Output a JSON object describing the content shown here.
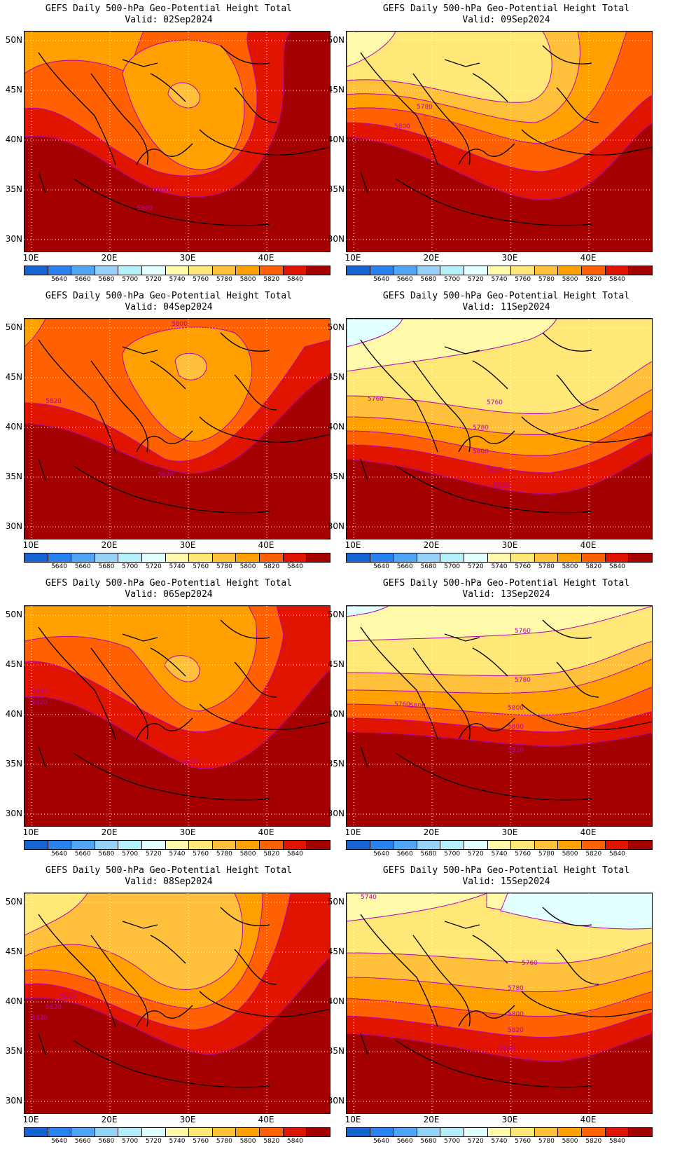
{
  "colorbar": {
    "labels": [
      "5640",
      "5660",
      "5680",
      "5700",
      "5720",
      "5740",
      "5760",
      "5780",
      "5800",
      "5820",
      "5840"
    ],
    "colors": [
      "#1464d2",
      "#2882f0",
      "#50a5f5",
      "#96d2fa",
      "#b4f0fa",
      "#e1ffff",
      "#fffaaa",
      "#ffe878",
      "#ffc03c",
      "#ffa000",
      "#ff6000",
      "#e11400",
      "#a50000"
    ]
  },
  "lat_labels": [
    "50N",
    "45N",
    "40N",
    "35N",
    "30N"
  ],
  "lon_labels": [
    "10E",
    "20E",
    "30E",
    "40E"
  ],
  "panels": [
    {
      "title": "GEFS Daily 500-hPa Geo-Potential Height Total",
      "valid": "Valid: 02Sep2024",
      "contour_labels": [
        "5820",
        "5820"
      ]
    },
    {
      "title": "GEFS Daily 500-hPa Geo-Potential Height Total",
      "valid": "Valid: 09Sep2024",
      "contour_labels": [
        "5780",
        "5800"
      ]
    },
    {
      "title": "GEFS Daily 500-hPa Geo-Potential Height Total",
      "valid": "Valid: 04Sep2024",
      "contour_labels": [
        "5800",
        "5820",
        "5820"
      ]
    },
    {
      "title": "GEFS Daily 500-hPa Geo-Potential Height Total",
      "valid": "Valid: 11Sep2024",
      "contour_labels": [
        "5760",
        "5760",
        "5780",
        "5800",
        "5820",
        "5820"
      ]
    },
    {
      "title": "GEFS Daily 500-hPa Geo-Potential Height Total",
      "valid": "Valid: 06Sep2024",
      "contour_labels": [
        "5820",
        "5820",
        "5820"
      ]
    },
    {
      "title": "GEFS Daily 500-hPa Geo-Potential Height Total",
      "valid": "Valid: 13Sep2024",
      "contour_labels": [
        "5760",
        "5760",
        "5780",
        "5800",
        "5800",
        "5800",
        "5820"
      ]
    },
    {
      "title": "GEFS Daily 500-hPa Geo-Potential Height Total",
      "valid": "Valid: 08Sep2024",
      "contour_labels": [
        "5800",
        "5820",
        "5820"
      ]
    },
    {
      "title": "GEFS Daily 500-hPa Geo-Potential Height Total",
      "valid": "Valid: 15Sep2024",
      "contour_labels": [
        "5740",
        "5760",
        "5780",
        "5800",
        "5820",
        "5840"
      ]
    }
  ]
}
